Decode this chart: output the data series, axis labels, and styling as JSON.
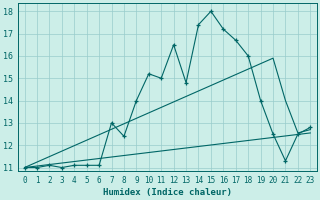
{
  "title": "",
  "xlabel": "Humidex (Indice chaleur)",
  "bg_color": "#cceee8",
  "line_color": "#006666",
  "grid_color": "#99cccc",
  "x_min": 0,
  "x_max": 23,
  "y_min": 11,
  "y_max": 18,
  "x_ticks": [
    0,
    1,
    2,
    3,
    4,
    5,
    6,
    7,
    8,
    9,
    10,
    11,
    12,
    13,
    14,
    15,
    16,
    17,
    18,
    19,
    20,
    21,
    22,
    23
  ],
  "y_ticks": [
    11,
    12,
    13,
    14,
    15,
    16,
    17,
    18
  ],
  "main_x": [
    0,
    1,
    2,
    3,
    4,
    5,
    6,
    7,
    8,
    9,
    10,
    11,
    12,
    13,
    14,
    15,
    16,
    17,
    18,
    19,
    20,
    21,
    22,
    23
  ],
  "main_y": [
    11.0,
    11.0,
    11.1,
    11.0,
    11.1,
    11.1,
    11.1,
    13.0,
    12.4,
    14.0,
    15.2,
    15.0,
    16.5,
    14.8,
    17.4,
    18.0,
    17.2,
    16.7,
    16.0,
    14.0,
    12.5,
    11.3,
    12.5,
    12.8
  ],
  "line2_x": [
    0,
    20,
    21,
    22,
    23
  ],
  "line2_y": [
    11.0,
    15.9,
    14.0,
    12.55,
    12.7
  ],
  "line3_x": [
    0,
    23
  ],
  "line3_y": [
    11.0,
    12.55
  ]
}
